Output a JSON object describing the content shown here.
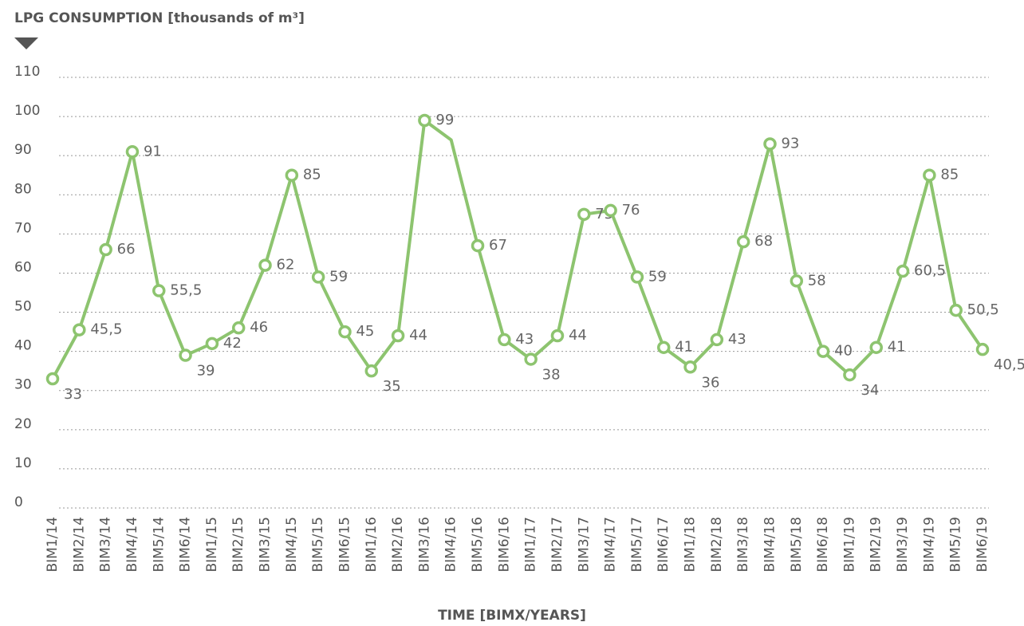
{
  "chart_data": {
    "type": "line",
    "title": "LPG CONSUMPTION [thousands of m³]",
    "x_label": "TIME [BIMX/YEARS]",
    "categories": [
      "BIM1/14",
      "BIM2/14",
      "BIM3/14",
      "BIM4/14",
      "BIM5/14",
      "BIM6/14",
      "BIM1/15",
      "BIM2/15",
      "BIM3/15",
      "BIM4/15",
      "BIM5/15",
      "BIM6/15",
      "BIM1/16",
      "BIM2/16",
      "BIM3/16",
      "BIM4/16",
      "BIM5/16",
      "BIM6/16",
      "BIM1/17",
      "BIM2/17",
      "BIM3/17",
      "BIM4/17",
      "BIM5/17",
      "BIM6/17",
      "BIM1/18",
      "BIM2/18",
      "BIM3/18",
      "BIM4/18",
      "BIM5/18",
      "BIM6/18",
      "BIM1/19",
      "BIM2/19",
      "BIM3/19",
      "BIM4/19",
      "BIM5/19",
      "BIM6/19"
    ],
    "series": [
      {
        "name": "LPG consumption",
        "color": "#8dc46f",
        "values": [
          33,
          45.5,
          66,
          91,
          55.5,
          39,
          42,
          46,
          62,
          85,
          59,
          45,
          35,
          44,
          99,
          94,
          67,
          43,
          38,
          44,
          75,
          76,
          59,
          41,
          36,
          43,
          68,
          93,
          58,
          40,
          34,
          41,
          60.5,
          85,
          50.5,
          40.5
        ],
        "value_labels": [
          "33",
          "45,5",
          "66",
          "91",
          "55,5",
          "39",
          "42",
          "46",
          "62",
          "85",
          "59",
          "45",
          "35",
          "44",
          "99",
          null,
          "67",
          "43",
          "38",
          "44",
          "75",
          "76",
          "59",
          "41",
          "36",
          "43",
          "68",
          "93",
          "58",
          "40",
          "34",
          "41",
          "60,5",
          "85",
          "50,5",
          "40,5"
        ]
      }
    ],
    "ylim": [
      0,
      110
    ],
    "yticks": [
      0,
      10,
      20,
      30,
      40,
      50,
      60,
      70,
      80,
      90,
      100,
      110
    ],
    "grid": true
  }
}
